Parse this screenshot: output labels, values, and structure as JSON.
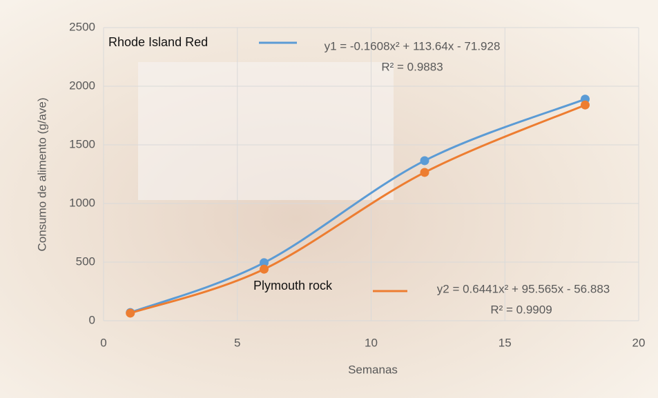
{
  "chart_data": {
    "type": "line",
    "x_label": "Semanas",
    "y_label": "Consumo de alimento (g/ave)",
    "x": [
      1,
      6,
      12,
      18
    ],
    "series": [
      {
        "name": "Rhode Island Red",
        "color": "#5b9bd5",
        "values": [
          70,
          495,
          1365,
          1890
        ],
        "equation": "y1 = -0.1608x² + 113.64x - 71.928",
        "r2": "R² = 0.9883"
      },
      {
        "name": "Plymouth rock",
        "color": "#ed7d31",
        "values": [
          65,
          440,
          1265,
          1840
        ],
        "equation": "y2 = 0.6441x² + 95.565x - 56.883",
        "r2": "R² = 0.9909"
      }
    ],
    "xlim": [
      0,
      20
    ],
    "xticks": [
      0,
      5,
      10,
      15,
      20
    ],
    "ylim": [
      0,
      2500
    ],
    "yticks": [
      0,
      500,
      1000,
      1500,
      2000,
      2500
    ],
    "grid": true,
    "smooth": true
  }
}
